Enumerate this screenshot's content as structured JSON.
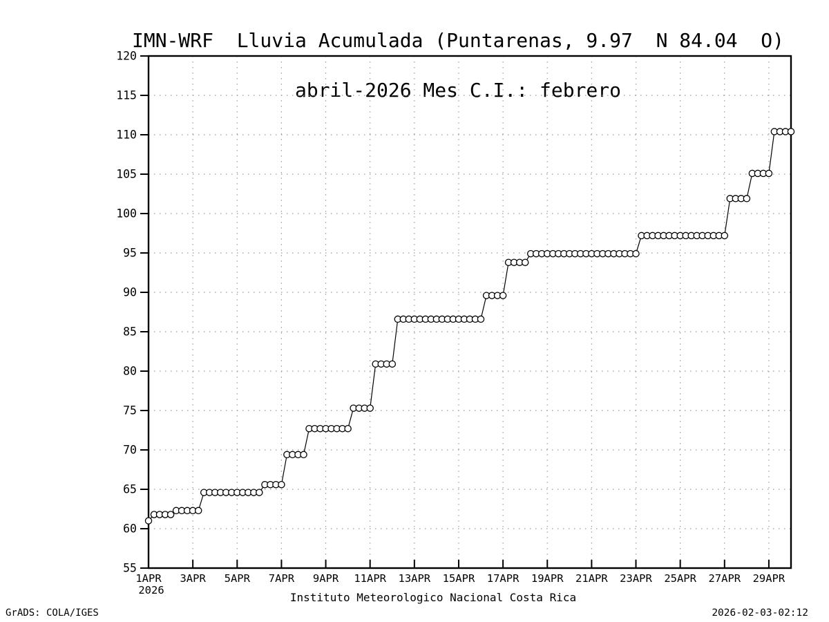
{
  "footer": {
    "left": "GrADS: COLA/IGES",
    "right": "2026-02-03-02:12"
  },
  "chart_data": {
    "type": "line",
    "title": "IMN-WRF  Lluvia Acumulada (Puntarenas, 9.97  N 84.04  O)",
    "subtitle": "abril-2026 Mes C.I.: febrero",
    "xlabel": "Instituto Meteorologico Nacional Costa Rica",
    "ylabel": "",
    "ylim": [
      55,
      120
    ],
    "y_ticks": [
      55,
      60,
      65,
      70,
      75,
      80,
      85,
      90,
      95,
      100,
      105,
      110,
      115,
      120
    ],
    "x_tick_labels": [
      "1APR",
      "3APR",
      "5APR",
      "7APR",
      "9APR",
      "11APR",
      "13APR",
      "15APR",
      "17APR",
      "19APR",
      "21APR",
      "23APR",
      "25APR",
      "27APR",
      "29APR"
    ],
    "x_start_year_label": "2026",
    "x_days_span": 29,
    "points_per_day": 4,
    "grid": "dotted",
    "marker": "open-circle",
    "colors": {
      "line": "#000000",
      "grid": "#999999",
      "background": "#ffffff"
    },
    "values": [
      61.0,
      61.8,
      61.8,
      61.8,
      61.8,
      62.3,
      62.3,
      62.3,
      62.3,
      62.3,
      64.6,
      64.6,
      64.6,
      64.6,
      64.6,
      64.6,
      64.6,
      64.6,
      64.6,
      64.6,
      64.6,
      65.6,
      65.6,
      65.6,
      65.6,
      69.4,
      69.4,
      69.4,
      69.4,
      72.7,
      72.7,
      72.7,
      72.7,
      72.7,
      72.7,
      72.7,
      72.7,
      75.3,
      75.3,
      75.3,
      75.3,
      80.9,
      80.9,
      80.9,
      80.9,
      86.6,
      86.6,
      86.6,
      86.6,
      86.6,
      86.6,
      86.6,
      86.6,
      86.6,
      86.6,
      86.6,
      86.6,
      86.6,
      86.6,
      86.6,
      86.6,
      89.6,
      89.6,
      89.6,
      89.6,
      93.8,
      93.8,
      93.8,
      93.8,
      94.9,
      94.9,
      94.9,
      94.9,
      94.9,
      94.9,
      94.9,
      94.9,
      94.9,
      94.9,
      94.9,
      94.9,
      94.9,
      94.9,
      94.9,
      94.9,
      94.9,
      94.9,
      94.9,
      94.9,
      97.2,
      97.2,
      97.2,
      97.2,
      97.2,
      97.2,
      97.2,
      97.2,
      97.2,
      97.2,
      97.2,
      97.2,
      97.2,
      97.2,
      97.2,
      97.2,
      101.9,
      101.9,
      101.9,
      101.9,
      105.1,
      105.1,
      105.1,
      105.1,
      110.4,
      110.4,
      110.4,
      110.4
    ]
  }
}
